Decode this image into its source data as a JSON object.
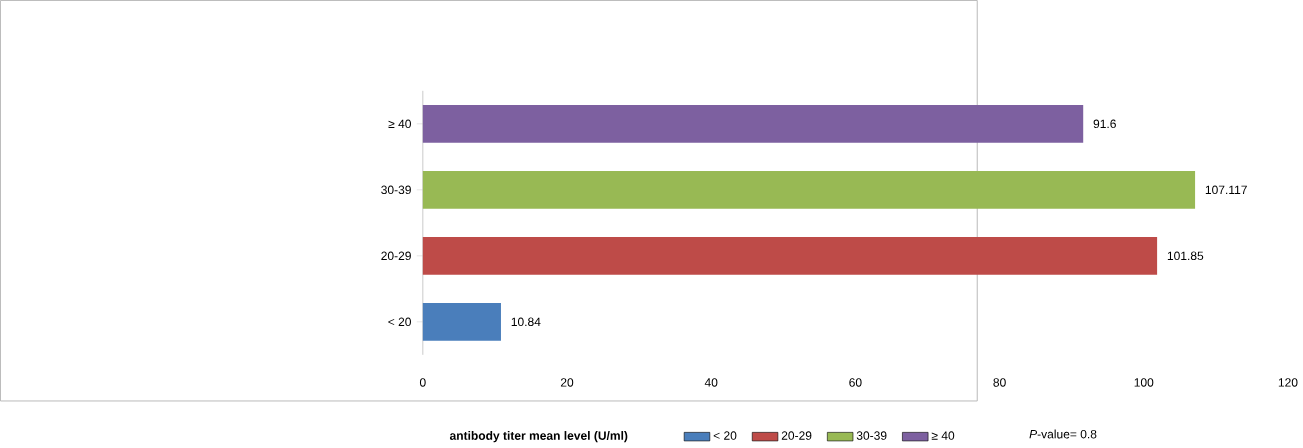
{
  "chart_data": {
    "type": "bar",
    "orientation": "horizontal",
    "categories": [
      "≥ 40",
      "30-39",
      "20-29",
      "< 20"
    ],
    "series": [
      {
        "name": "< 20",
        "color": "#4a7ebb",
        "values": [
          null,
          null,
          null,
          10.84
        ]
      },
      {
        "name": "20-29",
        "color": "#be4b48",
        "values": [
          null,
          null,
          101.85,
          null
        ]
      },
      {
        "name": "30-39",
        "color": "#98b954",
        "values": [
          null,
          107.117,
          null,
          null
        ]
      },
      {
        "name": "≥ 40",
        "color": "#7d60a0",
        "values": [
          91.6,
          null,
          null,
          null
        ]
      }
    ],
    "xlim": [
      0,
      120
    ],
    "xticks": [
      0,
      20,
      40,
      60,
      80,
      100,
      120
    ],
    "xlabel": "antibody titer mean level  (U/ml)",
    "annotations": [
      "*P*-value= 0.8"
    ],
    "data_labels": true,
    "grid": false,
    "legend": "bottom"
  }
}
